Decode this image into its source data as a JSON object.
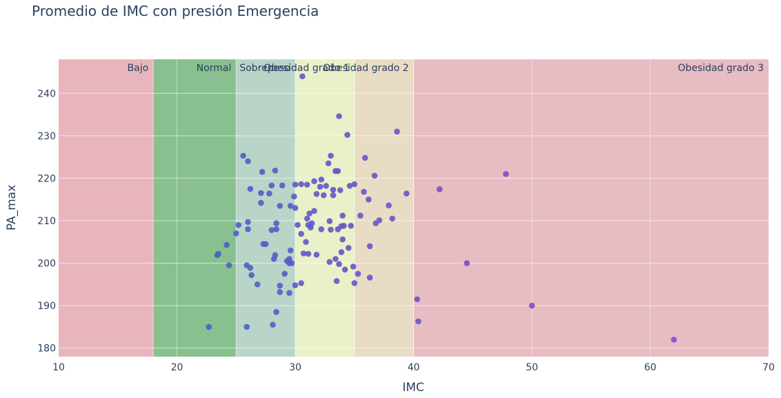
{
  "chart_data": {
    "type": "scatter",
    "title": "Promedio de IMC con presión Emergencia",
    "xlabel": "IMC",
    "ylabel": "PA_max",
    "xlim": [
      10,
      70
    ],
    "ylim": [
      178,
      248
    ],
    "xticks": [
      10,
      20,
      30,
      40,
      50,
      60,
      70
    ],
    "yticks": [
      180,
      190,
      200,
      210,
      220,
      230,
      240
    ],
    "grid": true,
    "bands": [
      {
        "label": "Bajo",
        "x0": 10,
        "x1": 18,
        "color": "#e8b5bd",
        "label_align": "end"
      },
      {
        "label": "Normal",
        "x0": 18,
        "x1": 25,
        "color": "#89c08f",
        "label_align": "end"
      },
      {
        "label": "Sobrepeso",
        "x0": 25,
        "x1": 30,
        "color": "#b9d5c8",
        "label_align": "end"
      },
      {
        "label": "Obesidad grado 1",
        "x0": 30,
        "x1": 35,
        "color": "#eaf1c8",
        "label_align": "end"
      },
      {
        "label": "Obesidad grado 2",
        "x0": 35,
        "x1": 40,
        "color": "#e9dcc4",
        "label_align": "end"
      },
      {
        "label": "Obesidad grado 3",
        "x0": 40,
        "x1": 70,
        "color": "#e8bcc3",
        "label_align": "end"
      }
    ],
    "color_scale": {
      "min_color": "#3d67c4",
      "max_color": "#8b46cc",
      "x_min": 22,
      "x_max": 62
    },
    "points": [
      {
        "x": 22.7,
        "y": 185.0
      },
      {
        "x": 23.5,
        "y": 202.2
      },
      {
        "x": 23.4,
        "y": 201.9
      },
      {
        "x": 24.2,
        "y": 204.3
      },
      {
        "x": 24.4,
        "y": 199.5
      },
      {
        "x": 25.0,
        "y": 207.0
      },
      {
        "x": 25.2,
        "y": 209.0
      },
      {
        "x": 25.6,
        "y": 225.3
      },
      {
        "x": 25.9,
        "y": 185.0
      },
      {
        "x": 26.0,
        "y": 209.7
      },
      {
        "x": 26.0,
        "y": 208.0
      },
      {
        "x": 26.0,
        "y": 224.0
      },
      {
        "x": 25.9,
        "y": 199.5
      },
      {
        "x": 26.2,
        "y": 217.5
      },
      {
        "x": 26.2,
        "y": 198.9
      },
      {
        "x": 26.3,
        "y": 197.2
      },
      {
        "x": 26.8,
        "y": 195.0
      },
      {
        "x": 27.1,
        "y": 216.5
      },
      {
        "x": 27.1,
        "y": 214.2
      },
      {
        "x": 27.2,
        "y": 221.5
      },
      {
        "x": 27.3,
        "y": 204.5
      },
      {
        "x": 27.5,
        "y": 204.5
      },
      {
        "x": 27.8,
        "y": 216.4
      },
      {
        "x": 28.0,
        "y": 218.3
      },
      {
        "x": 28.0,
        "y": 207.8
      },
      {
        "x": 28.1,
        "y": 185.5
      },
      {
        "x": 28.2,
        "y": 201.0
      },
      {
        "x": 28.3,
        "y": 201.9
      },
      {
        "x": 28.3,
        "y": 221.8
      },
      {
        "x": 28.4,
        "y": 209.4
      },
      {
        "x": 28.4,
        "y": 208.0
      },
      {
        "x": 28.4,
        "y": 188.5
      },
      {
        "x": 28.7,
        "y": 213.5
      },
      {
        "x": 28.7,
        "y": 194.7
      },
      {
        "x": 28.7,
        "y": 193.2
      },
      {
        "x": 28.9,
        "y": 218.3
      },
      {
        "x": 29.1,
        "y": 197.5
      },
      {
        "x": 29.3,
        "y": 200.5
      },
      {
        "x": 29.5,
        "y": 201.0
      },
      {
        "x": 29.5,
        "y": 200.0
      },
      {
        "x": 29.5,
        "y": 193.0
      },
      {
        "x": 29.6,
        "y": 213.5
      },
      {
        "x": 29.6,
        "y": 203.0
      },
      {
        "x": 29.7,
        "y": 200.0
      },
      {
        "x": 29.9,
        "y": 215.7
      },
      {
        "x": 30.0,
        "y": 218.5
      },
      {
        "x": 30.0,
        "y": 213.0
      },
      {
        "x": 30.0,
        "y": 194.8
      },
      {
        "x": 30.2,
        "y": 209.0
      },
      {
        "x": 30.5,
        "y": 195.3
      },
      {
        "x": 30.5,
        "y": 218.6
      },
      {
        "x": 30.5,
        "y": 206.9
      },
      {
        "x": 30.6,
        "y": 244.0
      },
      {
        "x": 30.7,
        "y": 202.3
      },
      {
        "x": 30.9,
        "y": 205.0
      },
      {
        "x": 31.0,
        "y": 210.5
      },
      {
        "x": 31.0,
        "y": 218.5
      },
      {
        "x": 31.1,
        "y": 209.0
      },
      {
        "x": 31.1,
        "y": 202.2
      },
      {
        "x": 31.2,
        "y": 211.7
      },
      {
        "x": 31.3,
        "y": 208.4
      },
      {
        "x": 31.4,
        "y": 209.4
      },
      {
        "x": 31.6,
        "y": 219.3
      },
      {
        "x": 31.6,
        "y": 212.3
      },
      {
        "x": 31.8,
        "y": 216.3
      },
      {
        "x": 31.8,
        "y": 202.0
      },
      {
        "x": 32.1,
        "y": 218.0
      },
      {
        "x": 32.2,
        "y": 208.0
      },
      {
        "x": 32.2,
        "y": 219.7
      },
      {
        "x": 32.4,
        "y": 216.0
      },
      {
        "x": 32.6,
        "y": 218.2
      },
      {
        "x": 32.8,
        "y": 223.5
      },
      {
        "x": 32.9,
        "y": 209.9
      },
      {
        "x": 32.9,
        "y": 200.3
      },
      {
        "x": 33.0,
        "y": 207.9
      },
      {
        "x": 33.0,
        "y": 225.3
      },
      {
        "x": 33.2,
        "y": 216.0
      },
      {
        "x": 33.2,
        "y": 217.3
      },
      {
        "x": 33.4,
        "y": 201.0
      },
      {
        "x": 33.4,
        "y": 221.7
      },
      {
        "x": 33.5,
        "y": 195.8
      },
      {
        "x": 33.6,
        "y": 221.7
      },
      {
        "x": 33.6,
        "y": 208.0
      },
      {
        "x": 33.7,
        "y": 199.8
      },
      {
        "x": 33.7,
        "y": 234.6
      },
      {
        "x": 33.8,
        "y": 217.2
      },
      {
        "x": 33.9,
        "y": 208.7
      },
      {
        "x": 33.9,
        "y": 202.6
      },
      {
        "x": 34.0,
        "y": 211.2
      },
      {
        "x": 34.0,
        "y": 205.6
      },
      {
        "x": 34.1,
        "y": 208.8
      },
      {
        "x": 34.2,
        "y": 198.5
      },
      {
        "x": 34.4,
        "y": 230.2
      },
      {
        "x": 34.5,
        "y": 203.6
      },
      {
        "x": 34.6,
        "y": 218.2
      },
      {
        "x": 34.7,
        "y": 208.8
      },
      {
        "x": 34.9,
        "y": 199.2
      },
      {
        "x": 35.0,
        "y": 218.6
      },
      {
        "x": 35.0,
        "y": 195.3
      },
      {
        "x": 35.3,
        "y": 197.5
      },
      {
        "x": 35.5,
        "y": 211.2
      },
      {
        "x": 35.8,
        "y": 216.8
      },
      {
        "x": 35.9,
        "y": 224.8
      },
      {
        "x": 36.2,
        "y": 215.0
      },
      {
        "x": 36.3,
        "y": 196.6
      },
      {
        "x": 36.3,
        "y": 204.0
      },
      {
        "x": 36.7,
        "y": 220.6
      },
      {
        "x": 36.8,
        "y": 209.4
      },
      {
        "x": 37.1,
        "y": 210.1
      },
      {
        "x": 37.9,
        "y": 213.6
      },
      {
        "x": 38.2,
        "y": 210.5
      },
      {
        "x": 38.6,
        "y": 231.0
      },
      {
        "x": 39.4,
        "y": 216.4
      },
      {
        "x": 40.3,
        "y": 191.5
      },
      {
        "x": 40.4,
        "y": 186.3
      },
      {
        "x": 42.2,
        "y": 217.4
      },
      {
        "x": 44.5,
        "y": 200.0
      },
      {
        "x": 47.8,
        "y": 221.0
      },
      {
        "x": 50.0,
        "y": 190.0
      },
      {
        "x": 62.0,
        "y": 182.0
      }
    ]
  }
}
